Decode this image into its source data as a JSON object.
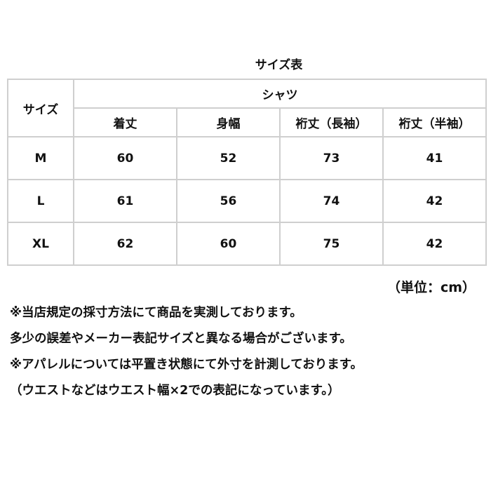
{
  "title": "サイズ表",
  "table": {
    "corner": "サイズ",
    "group": "シャツ",
    "columns": [
      "着丈",
      "身幅",
      "裄丈（長袖）",
      "裄丈（半袖）"
    ],
    "rows": [
      {
        "size": "M",
        "values": [
          "60",
          "52",
          "73",
          "41"
        ]
      },
      {
        "size": "L",
        "values": [
          "61",
          "56",
          "74",
          "42"
        ]
      },
      {
        "size": "XL",
        "values": [
          "62",
          "60",
          "75",
          "42"
        ]
      }
    ]
  },
  "unit": "（単位：cm）",
  "notes": [
    "※当店規定の採寸方法にて商品を実測しております。",
    "多少の誤差やメーカー表記サイズと異なる場合がございます。",
    "※アパレルについては平置き状態にて外寸を計測しております。",
    "（ウエストなどはウエスト幅×2での表記になっています。）"
  ]
}
